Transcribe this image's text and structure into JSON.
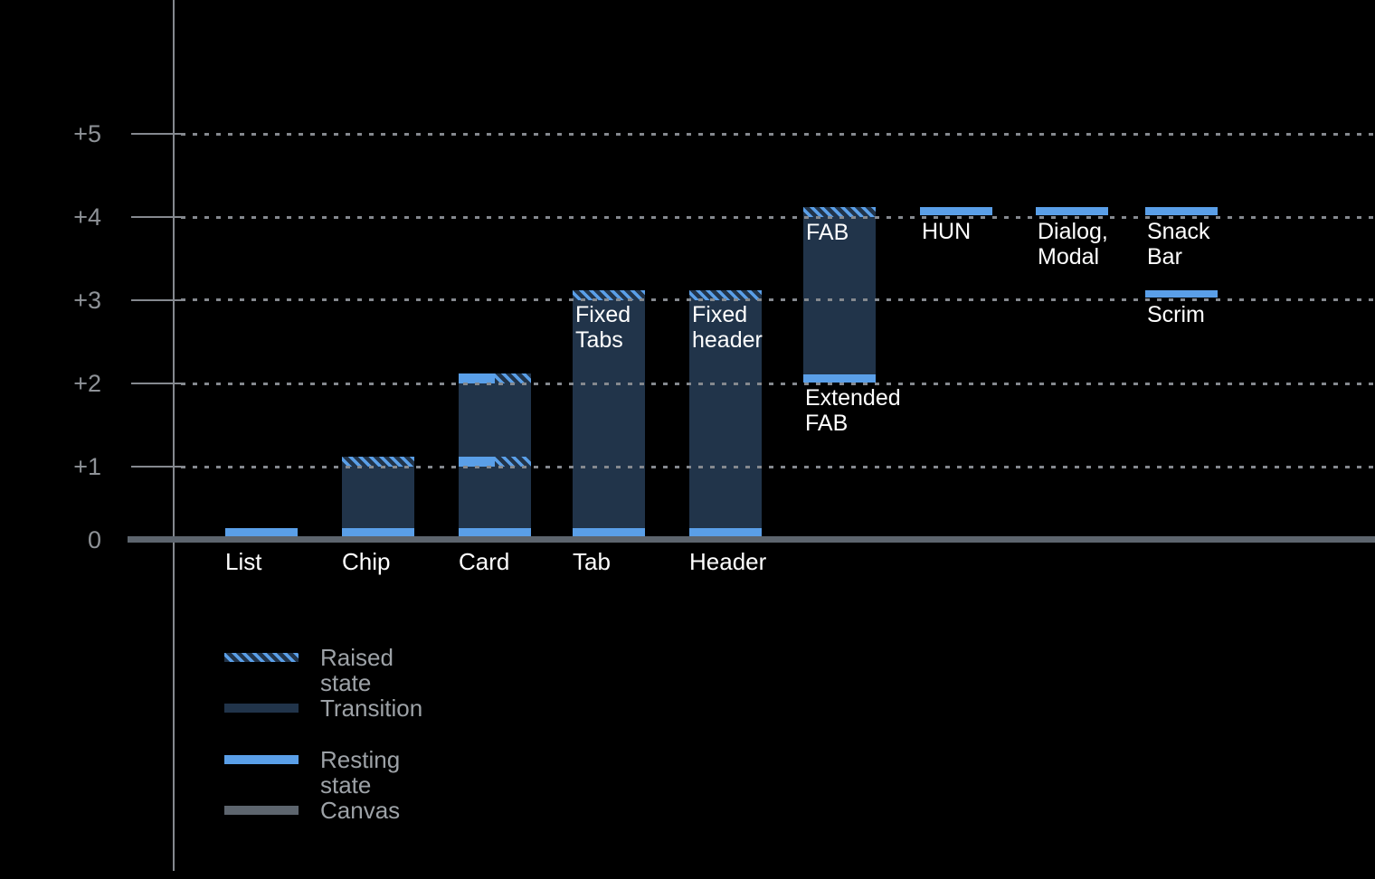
{
  "chart_data": {
    "type": "bar",
    "description_visible_text_only": true,
    "y_axis": {
      "tick_labels": [
        "+5",
        "+4",
        "+3",
        "+2",
        "+1",
        "0"
      ],
      "tick_values": [
        5,
        4,
        3,
        2,
        1,
        0
      ],
      "range": [
        0,
        5
      ],
      "gridlines": "dotted",
      "baseline_style": "thick-canvas-line"
    },
    "bars": [
      {
        "name": "list",
        "column": 0,
        "category_label": "List",
        "segments": [
          {
            "kind": "resting",
            "elevation": 0
          }
        ]
      },
      {
        "name": "chip",
        "column": 1,
        "category_label": "Chip",
        "segments": [
          {
            "kind": "resting",
            "elevation": 0
          },
          {
            "kind": "transition",
            "from": 0,
            "to": 1
          },
          {
            "kind": "raised",
            "elevation": 1
          }
        ]
      },
      {
        "name": "card",
        "column": 2,
        "category_label": "Card",
        "segments": [
          {
            "kind": "resting",
            "elevation": 0
          },
          {
            "kind": "transition",
            "from": 0,
            "to": 2
          },
          {
            "kind": "resting_raised",
            "elevation": 1
          },
          {
            "kind": "resting_raised",
            "elevation": 2
          }
        ]
      },
      {
        "name": "tab",
        "column": 3,
        "category_label": "Tab",
        "inner_label_lines": [
          "Fixed",
          "Tabs"
        ],
        "segments": [
          {
            "kind": "resting",
            "elevation": 0
          },
          {
            "kind": "transition",
            "from": 0,
            "to": 3
          },
          {
            "kind": "raised",
            "elevation": 3
          }
        ]
      },
      {
        "name": "header",
        "column": 4,
        "category_label": "Header",
        "inner_label_lines": [
          "Fixed",
          "header"
        ],
        "segments": [
          {
            "kind": "resting",
            "elevation": 0
          },
          {
            "kind": "transition",
            "from": 0,
            "to": 3
          },
          {
            "kind": "raised",
            "elevation": 3
          }
        ]
      },
      {
        "name": "extended-fab",
        "column": 5,
        "inner_label_lines": [
          "FAB"
        ],
        "below_label_lines": [
          "Extended",
          "FAB"
        ],
        "below_label_at": 2,
        "segments": [
          {
            "kind": "resting",
            "elevation": 2
          },
          {
            "kind": "transition",
            "from": 2,
            "to": 4
          },
          {
            "kind": "raised",
            "elevation": 4
          }
        ]
      },
      {
        "name": "hun",
        "column": 6,
        "below_label_lines": [
          "HUN"
        ],
        "below_label_at": 4,
        "segments": [
          {
            "kind": "float",
            "elevation": 4
          }
        ]
      },
      {
        "name": "dialog-modal",
        "column": 7,
        "below_label_lines": [
          "Dialog,",
          "Modal"
        ],
        "below_label_at": 4,
        "segments": [
          {
            "kind": "float",
            "elevation": 4
          }
        ]
      },
      {
        "name": "snack-bar",
        "column": 8,
        "below_label_lines": [
          "Snack Bar"
        ],
        "below_label_at": 4,
        "segments": [
          {
            "kind": "float",
            "elevation": 4
          }
        ]
      },
      {
        "name": "scrim",
        "column": 8,
        "below_label_lines": [
          "Scrim"
        ],
        "below_label_at": 3,
        "segments": [
          {
            "kind": "float",
            "elevation": 3
          }
        ]
      }
    ],
    "legend": {
      "position": "bottom-left",
      "items": [
        {
          "label": "Raised state",
          "style": "raised-hatch"
        },
        {
          "label": "Transition",
          "style": "transition-solid"
        },
        {
          "label": "Resting state",
          "style": "resting-solid"
        },
        {
          "label": "Canvas",
          "style": "canvas-solid"
        }
      ]
    },
    "colors": {
      "background": "#000000",
      "resting": "#5A9FE8",
      "transition": "#21344A",
      "canvas": "#5D656E",
      "grid": "#85898F",
      "axis_text": "#8E9297",
      "legend_text": "#9DA2A7",
      "bar_label_text": "#FFFFFF"
    }
  }
}
